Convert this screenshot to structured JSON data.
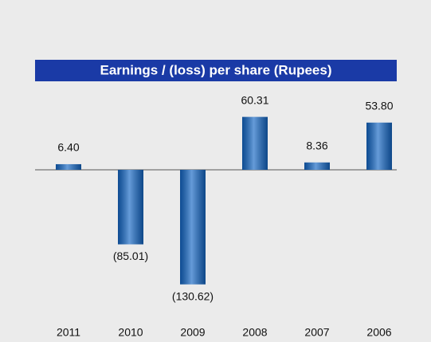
{
  "chart_data": {
    "type": "bar",
    "title": "Earnings / (loss) per share (Rupees)",
    "categories": [
      "2011",
      "2010",
      "2009",
      "2008",
      "2007",
      "2006"
    ],
    "values": [
      6.4,
      -85.01,
      -130.62,
      60.31,
      8.36,
      53.8
    ],
    "value_labels": [
      "6.40",
      "(85.01)",
      "(130.62)",
      "60.31",
      "8.36",
      "53.80"
    ],
    "color": "#1366c4"
  }
}
